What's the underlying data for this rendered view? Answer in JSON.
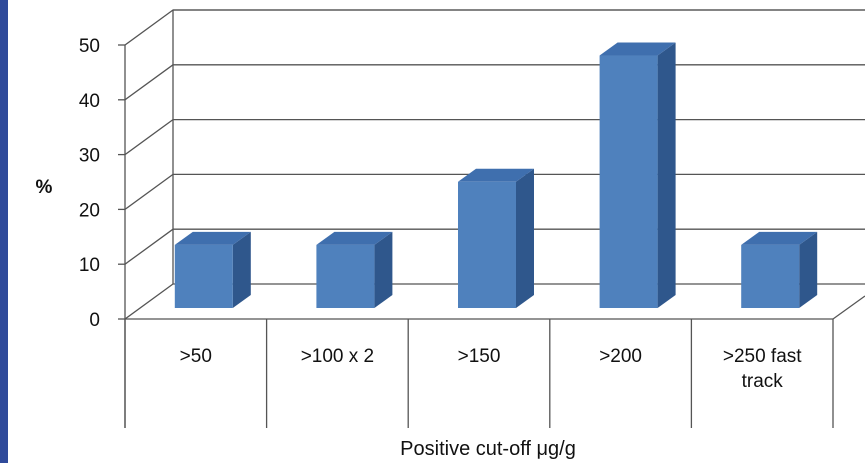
{
  "chart_data": {
    "type": "bar",
    "style": "3d",
    "categories": [
      ">50",
      ">100 x 2",
      ">150",
      ">200",
      ">250 fast track"
    ],
    "values": [
      12,
      12,
      24,
      48,
      12
    ],
    "title": "",
    "xlabel": "Positive cut-off μg/g",
    "ylabel": "%",
    "ylim": [
      0,
      50
    ],
    "yticks": [
      0,
      10,
      20,
      30,
      40,
      50
    ],
    "grid": true,
    "bar_color": "#4f81bd"
  }
}
